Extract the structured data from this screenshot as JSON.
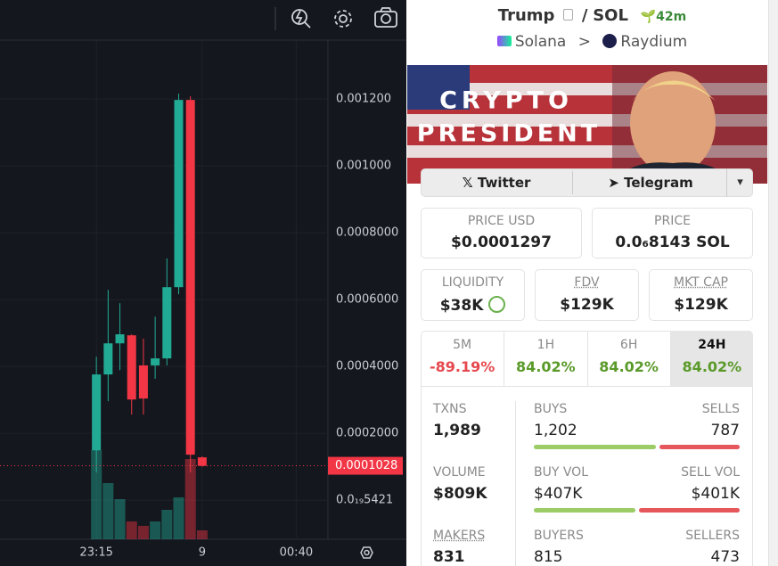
{
  "chart": {
    "type": "candlestick",
    "candles": [
      {
        "open": 0.000149,
        "high": 0.000429,
        "low": 8.3e-05,
        "close": 0.000376
      },
      {
        "open": 0.000376,
        "high": 0.000629,
        "low": 0.000296,
        "close": 0.000469
      },
      {
        "open": 0.000469,
        "high": 0.000589,
        "low": 0.000389,
        "close": 0.000496
      },
      {
        "open": 0.000493,
        "high": 0.000496,
        "low": 0.000256,
        "close": 0.000301
      },
      {
        "open": 0.000403,
        "high": 0.000483,
        "low": 0.000256,
        "close": 0.000304
      },
      {
        "open": 0.000403,
        "high": 0.000549,
        "low": 0.000363,
        "close": 0.000424
      },
      {
        "open": 0.000424,
        "high": 0.000723,
        "low": 0.000403,
        "close": 0.000637
      },
      {
        "open": 0.000637,
        "high": 0.001216,
        "low": 0.000616,
        "close": 0.001197
      },
      {
        "open": 0.001197,
        "high": 0.001208,
        "low": 8.3e-05,
        "close": 0.000136
      },
      {
        "open": 0.000128,
        "high": 0.000131,
        "low": 0.0001,
        "close": 0.0001028
      }
    ],
    "volumes": [
      100,
      63,
      45,
      20,
      15,
      20,
      33,
      47,
      90,
      10
    ],
    "up_color": "#22ab94",
    "down_color": "#f23645",
    "xlim": [
      -8.2,
      19.7
    ],
    "xticks": [
      {
        "value": 0,
        "label": "23:15"
      },
      9,
      {
        "value": 17,
        "label": "00:40"
      }
    ],
    "ylim": [
      -0.000117,
      0.001376
    ],
    "yticks": [
      {
        "value": 5.421e-21,
        "label": "0.0₁₉5421"
      },
      {
        "value": 0.0002,
        "label": "0.0002000"
      },
      {
        "value": 0.0004,
        "label": "0.0004000"
      },
      {
        "value": 0.0006,
        "label": "0.0006000"
      },
      {
        "value": 0.0008,
        "label": "0.0008000"
      },
      {
        "value": 0.001,
        "label": "0.001000"
      },
      {
        "value": 0.0012,
        "label": "0.001200"
      }
    ],
    "last_price": 0.0001028,
    "grid": true
  },
  "header": {
    "base": "Trump",
    "separator": "/",
    "quote": "SOL",
    "age": "42m",
    "chain": "Solana",
    "arrow": ">",
    "dex": "Raydium"
  },
  "banner": {
    "line1": "CRYPTO",
    "line2": "PRESIDENT"
  },
  "links": [
    "Twitter",
    "Telegram"
  ],
  "price_usd": {
    "label": "PRICE USD",
    "value": "$0.0001297"
  },
  "price": {
    "label": "PRICE",
    "value": "0.0₆8143 SOL"
  },
  "metrics": [
    {
      "label": "LIQUIDITY",
      "value": "$38K"
    },
    {
      "label": "FDV",
      "value": "$129K"
    },
    {
      "label": "MKT CAP",
      "value": "$129K"
    }
  ],
  "tabs": [
    {
      "label": "5M",
      "value": "-89.19%"
    },
    {
      "label": "1H",
      "value": "84.02%"
    },
    {
      "label": "6H",
      "value": "84.02%"
    },
    {
      "label": "24H",
      "value": "84.02%"
    }
  ],
  "txns": {
    "label": "TXNS",
    "value": "1,989",
    "buys_label": "BUYS",
    "buys": {
      "value": 1202,
      "label": "1,202"
    },
    "sells_label": "SELLS",
    "sells": {
      "value": 787,
      "label": "787"
    }
  },
  "volume": {
    "label": "VOLUME",
    "value": "$809K",
    "buy_label": "BUY VOL",
    "buy": {
      "value": 407000,
      "label": "$407K"
    },
    "sell_label": "SELL VOL",
    "sell": {
      "value": 401000,
      "label": "$401K"
    }
  },
  "makers": {
    "label": "MAKERS",
    "value": "831",
    "buyers_label": "BUYERS",
    "buyers": "815",
    "sellers_label": "SELLERS",
    "sellers": "473"
  }
}
